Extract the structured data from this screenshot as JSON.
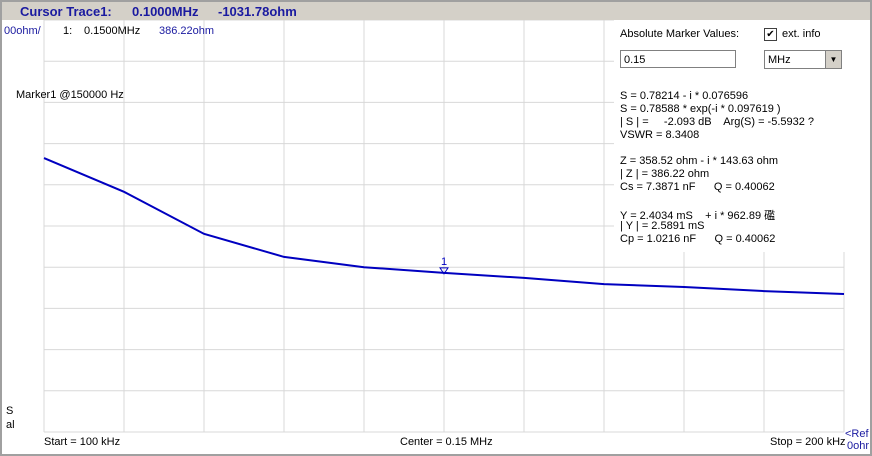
{
  "header": {
    "title": "Cursor Trace1:",
    "frequency": "0.1000MHz",
    "value": "-1031.78ohm"
  },
  "trace_info": {
    "scale": "00ohm/",
    "marker_index": "1:",
    "marker_freq": "0.1500MHz",
    "marker_value": "386.22ohm"
  },
  "marker_label": "Marker1 @150000 Hz",
  "side_labels": [
    "S",
    "al"
  ],
  "axis_labels": {
    "start": "Start = 100 kHz",
    "center": "Center = 0.15 MHz",
    "stop": "Stop = 200 kHz",
    "ref": [
      "<Ref",
      "0ohr"
    ]
  },
  "panel": {
    "title": "Absolute Marker Values:",
    "checkbox": "ext. info",
    "input": "0.15",
    "unit": "MHz",
    "groups": [
      [
        "S = 0.78214 - i * 0.076596",
        "S = 0.78588 * exp(-i * 0.097619 )",
        "| S | =     -2.093 dB    Arg(S) = -5.5932 ?",
        "VSWR = 8.3408"
      ],
      [
        "Z = 358.52 ohm - i * 143.63 ohm",
        "| Z | = 386.22 ohm",
        "Cs = 7.3871 nF      Q = 0.40062"
      ],
      [
        "Y = 2.4034 mS    + i * 962.89 礛",
        "| Y | = 2.5891 mS",
        "Cp = 1.0216 nF      Q = 0.40062"
      ]
    ]
  },
  "chart_data": {
    "type": "line",
    "x": [
      100,
      110,
      120,
      130,
      140,
      150,
      160,
      170,
      180,
      190,
      200
    ],
    "values": [
      665,
      583,
      481,
      425,
      400,
      386.22,
      374,
      359,
      352,
      342,
      335
    ],
    "color": "#0000c0",
    "xlim": [
      100,
      200
    ],
    "ylim": [
      0,
      1000
    ],
    "grid": true,
    "marker": {
      "label": "1",
      "index": 5
    }
  }
}
